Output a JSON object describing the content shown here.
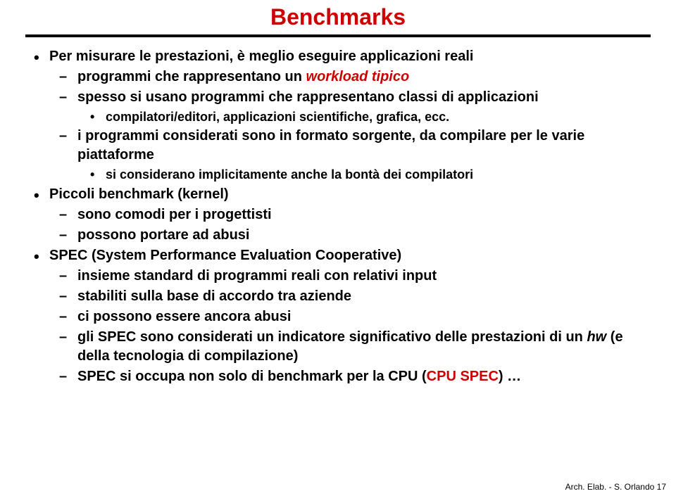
{
  "title": "Benchmarks",
  "colors": {
    "accent": "#cc0000",
    "text": "#000000",
    "background": "#ffffff"
  },
  "bullets": {
    "b1": "Per misurare le prestazioni, è meglio eseguire applicazioni reali",
    "b1a_pre": "programmi che rappresentano un ",
    "b1a_em": "workload tipico",
    "b1b": "spesso si usano programmi che rappresentano classi di applicazioni",
    "b1b1": "compilatori/editori, applicazioni scientifiche, grafica, ecc.",
    "b1c": "i programmi considerati sono in formato sorgente, da compilare per le varie piattaforme",
    "b1c1": "si considerano implicitamente anche la bontà dei compilatori",
    "b2": "Piccoli benchmark (kernel)",
    "b2a": "sono comodi per i progettisti",
    "b2b": "possono portare ad abusi",
    "b3": "SPEC (System Performance Evaluation Cooperative)",
    "b3a": "insieme standard di programmi reali con relativi input",
    "b3b": "stabiliti sulla base di accordo tra aziende",
    "b3c": "ci possono essere ancora abusi",
    "b3d_pre": "gli SPEC sono considerati un indicatore significativo delle prestazioni di un ",
    "b3d_em": "hw",
    "b3d_post": " (e della tecnologia di compilazione)",
    "b3e_pre": "SPEC si occupa non solo di benchmark per la CPU (",
    "b3e_red": "CPU SPEC",
    "b3e_post": ") …"
  },
  "footer": "Arch. Elab. - S. Orlando 17"
}
